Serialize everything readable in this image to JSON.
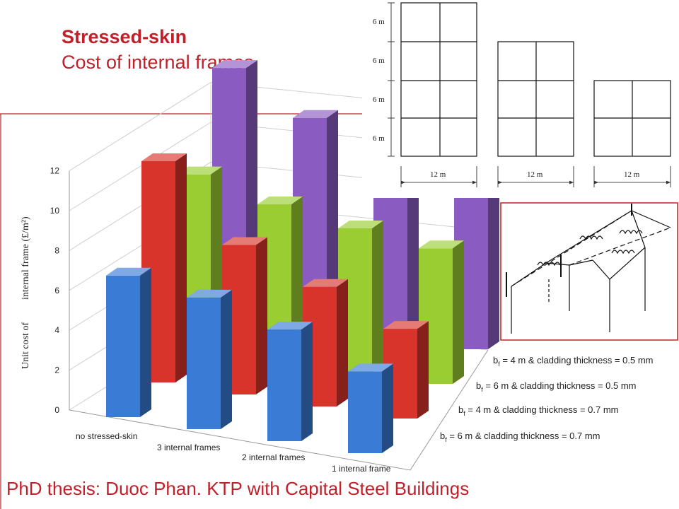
{
  "header": {
    "title_line1": "Stressed-skin",
    "title_line2": "Cost of internal frames"
  },
  "footer": {
    "credit": "PhD thesis: Duoc Phan.  KTP with Capital Steel Buildings"
  },
  "colors": {
    "accent": "#c0202a",
    "series": [
      "#3a7bd5",
      "#d9342b",
      "#9acd32",
      "#8a5cc2"
    ]
  },
  "chart_data": [
    {
      "type": "bar",
      "variant": "3d-bar",
      "ylabel_part1": "Unit cost of",
      "ylabel_part2": "internal frame (£/m²)",
      "ylim": [
        0,
        12
      ],
      "yticks": [
        "0",
        "2",
        "4",
        "6",
        "8",
        "10",
        "12"
      ],
      "grid": true,
      "legend_position": "right",
      "categories": [
        "no stressed-skin",
        "3 internal frames",
        "2 internal frames",
        "1 internal frame"
      ],
      "series": [
        {
          "name": "bf = 6 m & cladding thickness = 0.7 mm",
          "legend_sub": "f",
          "legend_rest": " = 6 m & cladding thickness = 0.7 mm",
          "values": [
            7.1,
            6.6,
            5.6,
            4.1
          ]
        },
        {
          "name": "bf = 4 m & cladding thickness = 0.7 mm",
          "legend_sub": "f",
          "legend_rest": " = 4 m & cladding thickness = 0.7 mm",
          "values": [
            11.1,
            7.5,
            6.0,
            4.5
          ]
        },
        {
          "name": "bf = 6 m & cladding thickness = 0.5 mm",
          "legend_sub": "f",
          "legend_rest": " = 6 m & cladding thickness = 0.5 mm",
          "values": [
            8.7,
            7.8,
            7.2,
            6.8
          ]
        },
        {
          "name": "bf = 4 m & cladding thickness = 0.5 mm",
          "legend_sub": "f",
          "legend_rest": " = 4 m & cladding thickness = 0.5 mm",
          "values": [
            12.3,
            10.4,
            10.1,
            9.4
          ]
        }
      ]
    }
  ],
  "diagram": {
    "frame_height_labels": [
      "6 m",
      "6 m",
      "6 m",
      "6 m"
    ],
    "width_labels": [
      "12 m",
      "12 m",
      "12 m"
    ]
  }
}
